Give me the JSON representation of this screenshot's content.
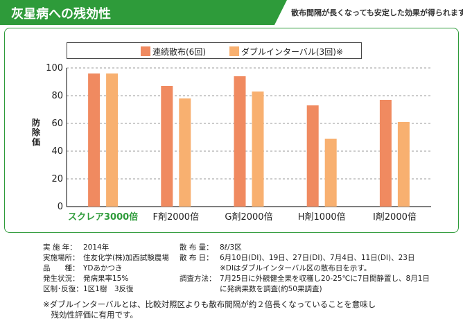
{
  "header": {
    "title": "灰星病への残効性",
    "ribbon_text": "散布間隔が長くなっても安定した効果が得られます。"
  },
  "chart_data": {
    "type": "bar",
    "categories": [
      "スクレア3000倍",
      "F剤2000倍",
      "G剤2000倍",
      "H剤1000倍",
      "I剤2000倍"
    ],
    "series": [
      {
        "name": "連続散布(6回)",
        "color": "#f08a60",
        "values": [
          96,
          87,
          94,
          73,
          77
        ]
      },
      {
        "name": "ダブルインターバル(3回)※",
        "color": "#f8b070",
        "values": [
          96,
          78,
          83,
          49,
          61
        ]
      }
    ],
    "ylabel": "防除価",
    "ylim": [
      0,
      100
    ],
    "yticks": [
      0,
      20,
      40,
      60,
      80,
      100
    ],
    "grid": true,
    "legend_position": "top",
    "highlight_category_color": "#2e9b3a"
  },
  "notes_left": [
    {
      "label": "実 施 年",
      "value": "2014年"
    },
    {
      "label": "実施場所",
      "value": "住友化学(株)加西試験農場"
    },
    {
      "label": "品　　種",
      "value": "YDあかつき"
    },
    {
      "label": "発生状況",
      "value": "発病果率15%"
    },
    {
      "label": "区制･反復",
      "value": "1区1樹　3反復"
    }
  ],
  "notes_right": [
    {
      "label": "散 布 量",
      "value": "8ℓ/3区"
    },
    {
      "label": "散 布 日",
      "value": "6月10日(DI)、19日、27日(DI)、7月4日、11日(DI)、23日"
    },
    {
      "label": "",
      "value": "※DIはダブルインターバル区の散布日を示す。"
    },
    {
      "label": "調査方法",
      "value": "7月25日に外観健全果を収穫し20-25℃に7日間静置し、8月1日"
    },
    {
      "label": "",
      "value": "に発病果数を調査(約50果調査)"
    }
  ],
  "footnote": {
    "line1": "※ダブルインターバルとは、比較対照区よりも散布間隔が約２倍長くなっていることを意味し",
    "line2": "　残効性評価に有用です。"
  }
}
